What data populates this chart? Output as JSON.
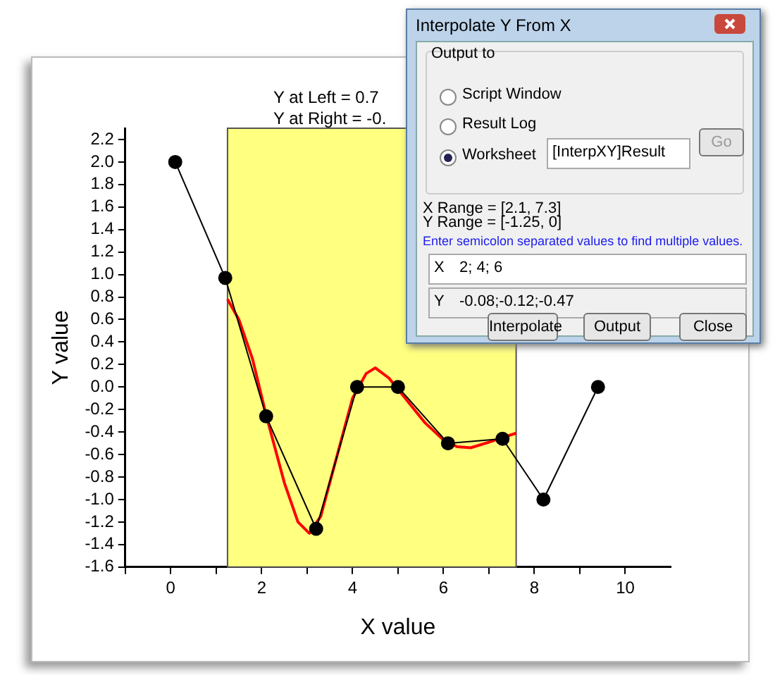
{
  "chart_data": {
    "type": "line",
    "xlabel": "X value",
    "ylabel": "Y value",
    "xlim": [
      -1,
      11
    ],
    "xticks": [
      {
        "value": -1,
        "label": null
      },
      0,
      {
        "value": 1,
        "label": null
      },
      2,
      {
        "value": 3,
        "label": null
      },
      4,
      {
        "value": 5,
        "label": null
      },
      6,
      {
        "value": 7,
        "label": null
      },
      8,
      {
        "value": 9,
        "label": null
      },
      10
    ],
    "ylim": [
      -1.6,
      2.3
    ],
    "yticks": [
      -1.6,
      -1.4,
      -1.2,
      {
        "value": -1,
        "label": "-1.0"
      },
      -0.8,
      -0.6,
      -0.4,
      -0.2,
      {
        "value": 0,
        "label": "0.0"
      },
      0.2,
      0.4,
      0.6,
      0.8,
      {
        "value": 1,
        "label": "1.0"
      },
      1.2,
      1.4,
      1.6,
      1.8,
      {
        "value": 2,
        "label": "2.0"
      },
      2.2
    ],
    "series": [
      {
        "color": "#000000",
        "marker": "circle",
        "x": [
          0.1,
          1.2,
          2.1,
          3.2,
          4.1,
          5.0,
          6.1,
          7.3,
          8.2,
          9.4
        ],
        "values": [
          2.0,
          0.97,
          -0.26,
          -1.26,
          0,
          0,
          -0.5,
          -0.46,
          -1.0,
          0
        ]
      },
      {
        "color": "#ff0000",
        "marker": "none",
        "x": [
          1.25,
          1.5,
          1.8,
          2.1,
          2.5,
          2.8,
          3.05,
          3.3,
          3.6,
          4.0,
          4.3,
          4.5,
          4.8,
          5.2,
          5.6,
          6.0,
          6.3,
          6.6,
          7.0,
          7.3,
          7.6
        ],
        "values": [
          0.78,
          0.6,
          0.25,
          -0.25,
          -0.85,
          -1.2,
          -1.3,
          -1.15,
          -0.7,
          -0.1,
          0.12,
          0.17,
          0.08,
          -0.12,
          -0.32,
          -0.47,
          -0.53,
          -0.54,
          -0.49,
          -0.45,
          -0.41
        ]
      }
    ],
    "bands": [
      {
        "axis": "x",
        "from": 1.25,
        "to": 7.6,
        "color": "#ffff80"
      }
    ],
    "grid": false,
    "legend": false,
    "annotations": [
      "Y at Left = 0.7",
      "Y at Right = -0.",
      "Interpolate Y From X",
      "Output to",
      "Script Window",
      "Result Log",
      "Worksheet",
      "[InterpXY]Result",
      "Go",
      "X Range = [2.1, 7.3]",
      "Y Range = [-1.25, 0]",
      "Enter semicolon separated values to find multiple values.",
      "X",
      "2; 4; 6",
      "Y",
      "-0.08;-0.12;-0.47",
      "Interpolate",
      "Output",
      "Close"
    ]
  }
}
